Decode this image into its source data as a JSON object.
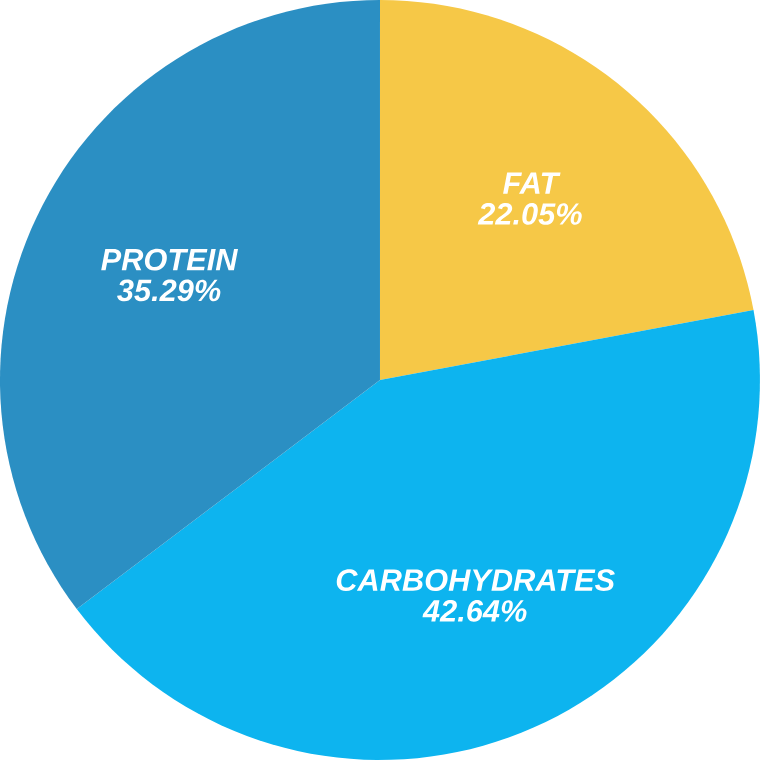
{
  "chart_data": {
    "type": "pie",
    "categories": [
      "FAT",
      "CARBOHYDRATES",
      "PROTEIN"
    ],
    "values": [
      22.05,
      42.64,
      35.29
    ],
    "value_labels": [
      "22.05%",
      "42.64%",
      "35.29%"
    ],
    "colors": [
      "#f6c847",
      "#0db4ef",
      "#2b8fc3"
    ]
  }
}
